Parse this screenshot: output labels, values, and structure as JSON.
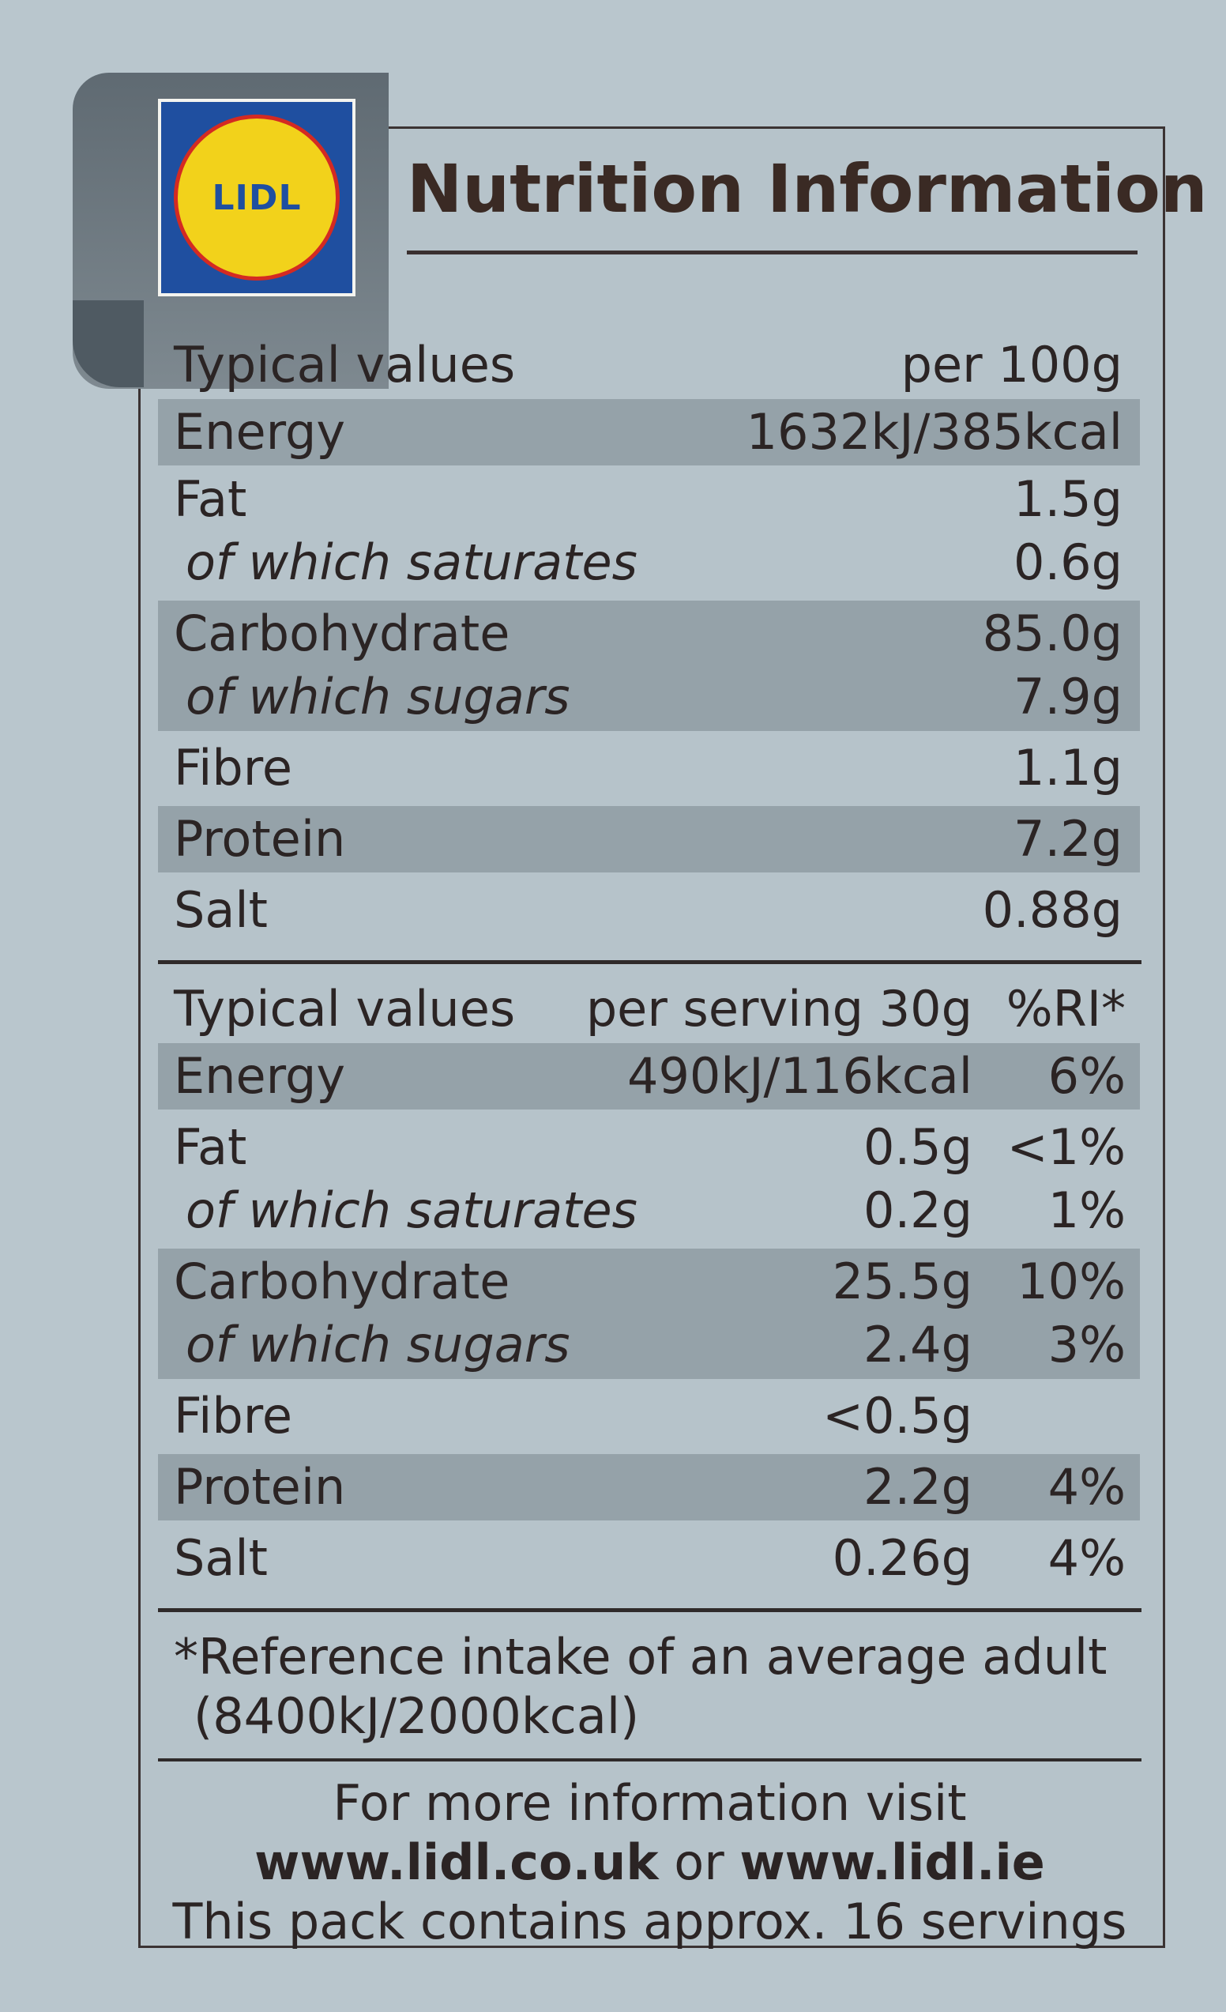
{
  "brand": {
    "logo_text": "LIDL",
    "colors": {
      "blue": "#1f4fa0",
      "yellow": "#f2d21b",
      "red": "#d42a22"
    }
  },
  "title": "Nutrition Information",
  "table100": {
    "header": {
      "label": "Typical values",
      "col1": "per 100g"
    },
    "rows": [
      {
        "label": "Energy",
        "v1": "1632kJ/385kcal"
      },
      {
        "label": "Fat",
        "v1": "1.5g"
      },
      {
        "label": "of which saturates",
        "v1": "0.6g"
      },
      {
        "label": "Carbohydrate",
        "v1": "85.0g"
      },
      {
        "label": "of which sugars",
        "v1": "7.9g"
      },
      {
        "label": "Fibre",
        "v1": "1.1g"
      },
      {
        "label": "Protein",
        "v1": "7.2g"
      },
      {
        "label": "Salt",
        "v1": "0.88g"
      }
    ]
  },
  "tableServing": {
    "header": {
      "label": "Typical values",
      "col1": "per serving 30g",
      "col2": "%RI*"
    },
    "rows": [
      {
        "label": "Energy",
        "v1": "490kJ/116kcal",
        "v2": "6%"
      },
      {
        "label": "Fat",
        "v1": "0.5g",
        "v2": "<1%"
      },
      {
        "label": "of which saturates",
        "v1": "0.2g",
        "v2": "1%"
      },
      {
        "label": "Carbohydrate",
        "v1": "25.5g",
        "v2": "10%"
      },
      {
        "label": "of which sugars",
        "v1": "2.4g",
        "v2": "3%"
      },
      {
        "label": "Fibre",
        "v1": "<0.5g",
        "v2": ""
      },
      {
        "label": "Protein",
        "v1": "2.2g",
        "v2": "4%"
      },
      {
        "label": "Salt",
        "v1": "0.26g",
        "v2": "4%"
      }
    ]
  },
  "footnote": {
    "line1": "*Reference intake of an average adult",
    "line2": "(8400kJ/2000kcal)"
  },
  "info": {
    "line1": "For more information visit",
    "site1": "www.lidl.co.uk",
    "or": " or ",
    "site2": "www.lidl.ie",
    "line3": "This pack contains approx. 16 servings"
  }
}
